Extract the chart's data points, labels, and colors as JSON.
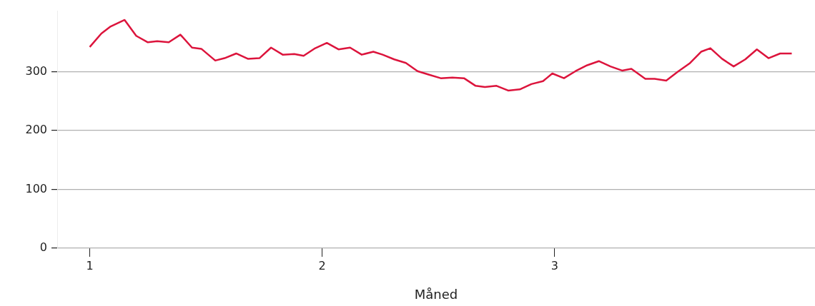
{
  "chart_data": {
    "type": "line",
    "xlabel": "Måned",
    "x": [
      1.0,
      1.05,
      1.09,
      1.15,
      1.2,
      1.25,
      1.29,
      1.34,
      1.39,
      1.44,
      1.48,
      1.54,
      1.58,
      1.63,
      1.68,
      1.73,
      1.78,
      1.83,
      1.88,
      1.92,
      1.97,
      2.02,
      2.07,
      2.12,
      2.17,
      2.22,
      2.26,
      2.31,
      2.36,
      2.41,
      2.46,
      2.51,
      2.56,
      2.61,
      2.66,
      2.7,
      2.75,
      2.8,
      2.85,
      2.9,
      2.95,
      2.99,
      3.04,
      3.09,
      3.14,
      3.19,
      3.24,
      3.29,
      3.33,
      3.39,
      3.43,
      3.48,
      3.53,
      3.58,
      3.63,
      3.67,
      3.72,
      3.77,
      3.82,
      3.87,
      3.92,
      3.97,
      4.02
    ],
    "series": [
      {
        "color": "#dc143c",
        "values": [
          342,
          365,
          377,
          388,
          361,
          350,
          352,
          350,
          363,
          341,
          339,
          319,
          323,
          331,
          322,
          323,
          341,
          329,
          330,
          327,
          340,
          349,
          338,
          341,
          329,
          334,
          329,
          321,
          315,
          301,
          295,
          289,
          290,
          289,
          276,
          274,
          276,
          268,
          270,
          279,
          284,
          297,
          289,
          301,
          311,
          318,
          309,
          302,
          305,
          288,
          288,
          285,
          300,
          314,
          334,
          340,
          322,
          309,
          321,
          338,
          323,
          331,
          331
        ]
      }
    ],
    "xlim": [
      0.86,
      4.12
    ],
    "xticks": [
      1,
      2,
      3
    ],
    "ylim": [
      0,
      403
    ],
    "yticks": [
      0,
      100,
      200,
      300
    ],
    "grid": "y",
    "legend": false,
    "marker": "none",
    "line_style": "solid"
  }
}
